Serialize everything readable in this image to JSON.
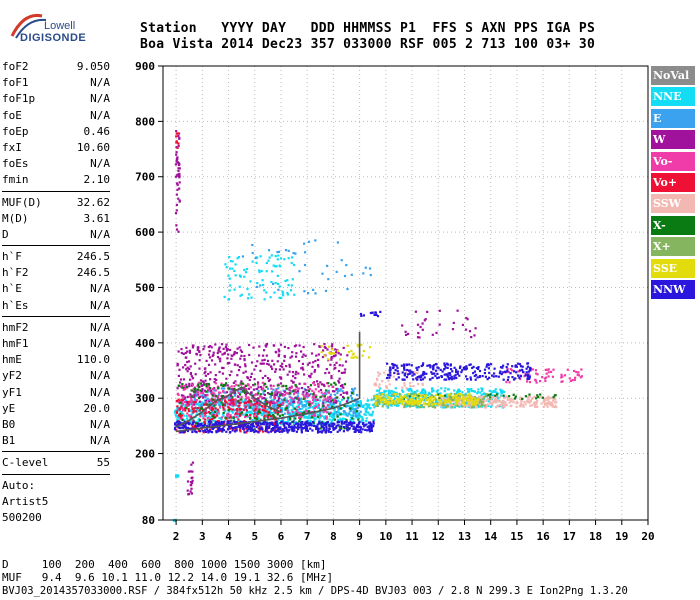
{
  "logo": {
    "line1": "Lowell",
    "line2": "DIGISONDE"
  },
  "header": {
    "labels": "Station   YYYY DAY   DDD HHMMSS P1  FFS S AXN PPS IGA PS",
    "values": "Boa Vista 2014 Dec23 357 033000 RSF 005 2 713 100 03+ 30"
  },
  "params": [
    {
      "name": "foF2",
      "value": "9.050"
    },
    {
      "name": "foF1",
      "value": "N/A"
    },
    {
      "name": "foF1p",
      "value": "N/A"
    },
    {
      "name": "foE",
      "value": "N/A"
    },
    {
      "name": "foEp",
      "value": "0.46"
    },
    {
      "name": "fxI",
      "value": "10.60"
    },
    {
      "name": "foEs",
      "value": "N/A"
    },
    {
      "name": "fmin",
      "value": "2.10"
    },
    {
      "sep": true
    },
    {
      "name": "MUF(D)",
      "value": "32.62"
    },
    {
      "name": "M(D)",
      "value": "3.61"
    },
    {
      "name": "D",
      "value": "N/A"
    },
    {
      "sep": true
    },
    {
      "name": "h`F",
      "value": "246.5"
    },
    {
      "name": "h`F2",
      "value": "246.5"
    },
    {
      "name": "h`E",
      "value": "N/A"
    },
    {
      "name": "h`Es",
      "value": "N/A"
    },
    {
      "sep": true
    },
    {
      "name": "hmF2",
      "value": "N/A"
    },
    {
      "name": "hmF1",
      "value": "N/A"
    },
    {
      "name": "hmE",
      "value": "110.0"
    },
    {
      "name": "yF2",
      "value": "N/A"
    },
    {
      "name": "yF1",
      "value": "N/A"
    },
    {
      "name": "yE",
      "value": "20.0"
    },
    {
      "name": "B0",
      "value": "N/A"
    },
    {
      "name": "B1",
      "value": "N/A"
    },
    {
      "sep": true
    },
    {
      "name": "C-level",
      "value": "55"
    },
    {
      "sep": true
    },
    {
      "text": "Auto:"
    },
    {
      "text": "Artist5"
    },
    {
      "text": "500200"
    }
  ],
  "legend": [
    {
      "label": "NoVal",
      "color": "#8c8c8c"
    },
    {
      "label": "NNE",
      "color": "#13dcf5"
    },
    {
      "label": "E",
      "color": "#3aa2ee"
    },
    {
      "label": "W",
      "color": "#a0119c"
    },
    {
      "label": "Vo-",
      "color": "#f03ca8"
    },
    {
      "label": "Vo+",
      "color": "#ee1035"
    },
    {
      "label": "SSW",
      "color": "#f4b8b2"
    },
    {
      "label": "X-",
      "color": "#0a7a12"
    },
    {
      "label": "X+",
      "color": "#86b55f"
    },
    {
      "label": "SSE",
      "color": "#e2dc0c"
    },
    {
      "label": "NNW",
      "color": "#2a16dc"
    }
  ],
  "bottom": {
    "d_line": "D     100  200  400  600  800 1000 1500 3000 [km]",
    "muf_line": "MUF   9.4  9.6 10.1 11.0 12.2 14.0 19.1 32.6 [MHz]",
    "file_line": "BVJ03_2014357033000.RSF / 384fx512h 50 kHz 2.5 km / DPS-4D BVJ03 003 / 2.8 N 299.3 E Ion2Png 1.3.20"
  },
  "chart_data": {
    "type": "scatter",
    "title": "",
    "xlabel": "",
    "ylabel": "",
    "xlim": [
      1.5,
      20
    ],
    "ylim": [
      80,
      900
    ],
    "x_ticks": [
      2,
      3,
      4,
      5,
      6,
      7,
      8,
      9,
      10,
      11,
      12,
      13,
      14,
      15,
      16,
      17,
      18,
      19,
      20
    ],
    "y_ticks": [
      80,
      200,
      300,
      400,
      500,
      600,
      700,
      800,
      900
    ],
    "grid": "dotted",
    "legend_position": "right",
    "series": [
      {
        "name": "NNE",
        "color": "#13dcf5",
        "clusters": [
          {
            "f": [
              1.9,
              9.5
            ],
            "h": [
              255,
              300
            ],
            "n": 700
          },
          {
            "f": [
              9.5,
              14.5
            ],
            "h": [
              285,
              320
            ],
            "n": 350
          },
          {
            "f": [
              3.8,
              6.5
            ],
            "h": [
              480,
              560
            ],
            "n": 90
          },
          {
            "f": [
              1.95,
              2.05
            ],
            "h": [
              160,
              163
            ],
            "n": 10
          },
          {
            "f": [
              1.85,
              1.95
            ],
            "h": [
              80,
              82
            ],
            "n": 6
          }
        ]
      },
      {
        "name": "E",
        "color": "#3aa2ee",
        "clusters": [
          {
            "f": [
              2.5,
              9.0
            ],
            "h": [
              270,
              320
            ],
            "n": 300
          },
          {
            "f": [
              4.0,
              9.5
            ],
            "h": [
              490,
              590
            ],
            "n": 40
          }
        ]
      },
      {
        "name": "W",
        "color": "#a0119c",
        "clusters": [
          {
            "f": [
              2.0,
              8.5
            ],
            "h": [
              290,
              400
            ],
            "n": 500
          },
          {
            "f": [
              1.95,
              2.1
            ],
            "h": [
              600,
              790
            ],
            "n": 35
          },
          {
            "f": [
              2.0,
              2.1
            ],
            "h": [
              700,
              730
            ],
            "n": 10
          },
          {
            "f": [
              10.5,
              13.5
            ],
            "h": [
              410,
              460
            ],
            "n": 30
          },
          {
            "f": [
              2.4,
              2.6
            ],
            "h": [
              120,
              190
            ],
            "n": 20
          }
        ]
      },
      {
        "name": "Vo-",
        "color": "#f03ca8",
        "clusters": [
          {
            "f": [
              2.0,
              8.0
            ],
            "h": [
              265,
              330
            ],
            "n": 300
          },
          {
            "f": [
              14.5,
              17.5
            ],
            "h": [
              330,
              355
            ],
            "n": 60
          }
        ]
      },
      {
        "name": "Vo+",
        "color": "#ee1035",
        "clusters": [
          {
            "f": [
              1.95,
              6.0
            ],
            "h": [
              240,
              300
            ],
            "n": 250
          },
          {
            "f": [
              1.95,
              2.05
            ],
            "h": [
              750,
              790
            ],
            "n": 8
          }
        ]
      },
      {
        "name": "SSW",
        "color": "#f4b8b2",
        "clusters": [
          {
            "f": [
              12.0,
              16.5
            ],
            "h": [
              285,
              305
            ],
            "n": 250
          },
          {
            "f": [
              9.5,
              11.5
            ],
            "h": [
              320,
              350
            ],
            "n": 40
          }
        ]
      },
      {
        "name": "X-",
        "color": "#0a7a12",
        "clusters": [
          {
            "f": [
              2.0,
              9.0
            ],
            "h": [
              245,
              330
            ],
            "n": 200
          },
          {
            "f": [
              10.5,
              16.5
            ],
            "h": [
              300,
              310
            ],
            "n": 40
          }
        ]
      },
      {
        "name": "X+",
        "color": "#86b55f",
        "clusters": [
          {
            "f": [
              9.5,
              14.0
            ],
            "h": [
              285,
              310
            ],
            "n": 150
          }
        ]
      },
      {
        "name": "SSE",
        "color": "#e2dc0c",
        "clusters": [
          {
            "f": [
              9.5,
              13.5
            ],
            "h": [
              290,
              310
            ],
            "n": 200
          },
          {
            "f": [
              7.5,
              9.5
            ],
            "h": [
              370,
              400
            ],
            "n": 30
          }
        ]
      },
      {
        "name": "NNW",
        "color": "#2a16dc",
        "clusters": [
          {
            "f": [
              1.9,
              9.5
            ],
            "h": [
              240,
              260
            ],
            "n": 500
          },
          {
            "f": [
              10.0,
              15.5
            ],
            "h": [
              335,
              365
            ],
            "n": 250
          },
          {
            "f": [
              9.0,
              10.0
            ],
            "h": [
              450,
              458
            ],
            "n": 12
          }
        ]
      }
    ],
    "traces": [
      {
        "color": "#555555",
        "points": [
          [
            2.0,
            248
          ],
          [
            2.5,
            260
          ],
          [
            3.0,
            275
          ],
          [
            3.5,
            295
          ],
          [
            4.0,
            305
          ],
          [
            4.5,
            320
          ],
          [
            5.0,
            300
          ],
          [
            5.5,
            285
          ],
          [
            6.0,
            275
          ]
        ]
      },
      {
        "color": "#555555",
        "points": [
          [
            2.0,
            240
          ],
          [
            3.0,
            246
          ],
          [
            4.0,
            252
          ],
          [
            5.0,
            258
          ],
          [
            6.0,
            264
          ],
          [
            7.0,
            272
          ],
          [
            8.0,
            282
          ],
          [
            8.6,
            292
          ],
          [
            9.0,
            300
          ],
          [
            9.0,
            420
          ]
        ]
      }
    ]
  }
}
